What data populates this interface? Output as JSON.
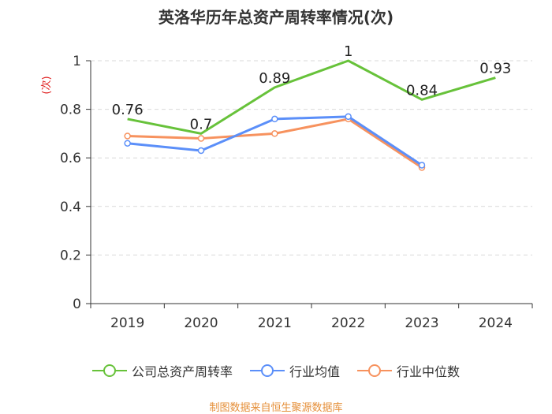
{
  "title": "英洛华历年总资产周转率情况(次)",
  "footer": "制图数据来自恒生聚源数据库",
  "chart_data": {
    "type": "line",
    "title": "英洛华历年总资产周转率情况(次)",
    "xlabel": "",
    "ylabel": "(次)",
    "ylim": [
      0,
      1
    ],
    "yticks": [
      0,
      0.2,
      0.4,
      0.6,
      0.8,
      1
    ],
    "ytick_labels": [
      "0",
      "0.2",
      "0.4",
      "0.6",
      "0.8",
      "1"
    ],
    "categories": [
      "2019",
      "2020",
      "2021",
      "2022",
      "2023",
      "2024"
    ],
    "grid": true,
    "legend_position": "bottom",
    "series": [
      {
        "name": "公司总资产周转率",
        "color": "#67c23a",
        "marker": "none",
        "values": [
          0.76,
          0.7,
          0.89,
          1,
          0.84,
          0.93
        ],
        "labels": [
          "0.76",
          "0.7",
          "0.89",
          "1",
          "0.84",
          "0.93"
        ]
      },
      {
        "name": "行业均值",
        "color": "#5b8ff9",
        "marker": "circle",
        "values": [
          0.66,
          0.63,
          0.76,
          0.77,
          0.57,
          null
        ]
      },
      {
        "name": "行业中位数",
        "color": "#f7925e",
        "marker": "circle",
        "values": [
          0.69,
          0.68,
          0.7,
          0.76,
          0.56,
          null
        ]
      }
    ]
  }
}
